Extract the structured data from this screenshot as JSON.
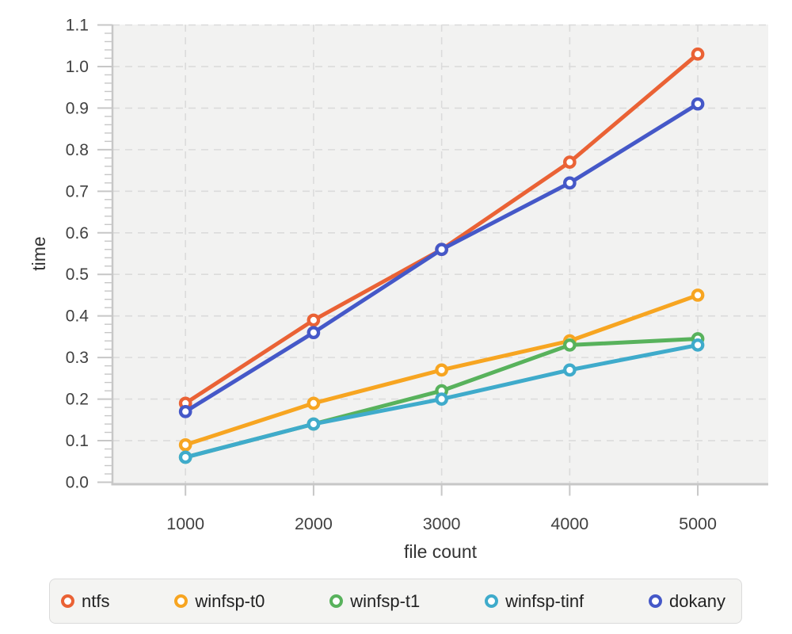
{
  "chart_data": {
    "type": "line",
    "xlabel": "file count",
    "ylabel": "time",
    "x": [
      1000,
      2000,
      3000,
      4000,
      5000
    ],
    "x_ticks": [
      1000,
      2000,
      3000,
      4000,
      5000
    ],
    "y_ticks": [
      0,
      0.1,
      0.2,
      0.3,
      0.4,
      0.5,
      0.6,
      0.7,
      0.8,
      0.9,
      1,
      1.1
    ],
    "xlim": [
      430,
      5550
    ],
    "ylim": [
      0,
      1.1
    ],
    "y_minor_tick_step": 0.02,
    "grid": "dashed",
    "legend_position": "bottom",
    "marker": "open-circle",
    "series": [
      {
        "name": "ntfs",
        "color": "#EA6235",
        "values": [
          0.19,
          0.39,
          0.56,
          0.77,
          1.03
        ]
      },
      {
        "name": "winfsp-t0",
        "color": "#F7A521",
        "values": [
          0.09,
          0.19,
          0.27,
          0.34,
          0.45
        ]
      },
      {
        "name": "winfsp-t1",
        "color": "#58B25C",
        "values": [
          0.06,
          0.14,
          0.22,
          0.33,
          0.345
        ]
      },
      {
        "name": "winfsp-tinf",
        "color": "#3FABCB",
        "values": [
          0.06,
          0.14,
          0.2,
          0.27,
          0.33
        ]
      },
      {
        "name": "dokany",
        "color": "#4558C8",
        "values": [
          0.17,
          0.36,
          0.56,
          0.72,
          0.91
        ]
      }
    ]
  },
  "styles": {
    "plot_bg": "#F2F2F1",
    "grid_color": "#DBDBDB",
    "axis_color": "#C7C7C7",
    "tick_label_color": "#414141",
    "axis_title_color": "#333333",
    "legend_bg": "#F4F4F2",
    "legend_border": "#DBDBDB",
    "legend_text": "#222222"
  }
}
